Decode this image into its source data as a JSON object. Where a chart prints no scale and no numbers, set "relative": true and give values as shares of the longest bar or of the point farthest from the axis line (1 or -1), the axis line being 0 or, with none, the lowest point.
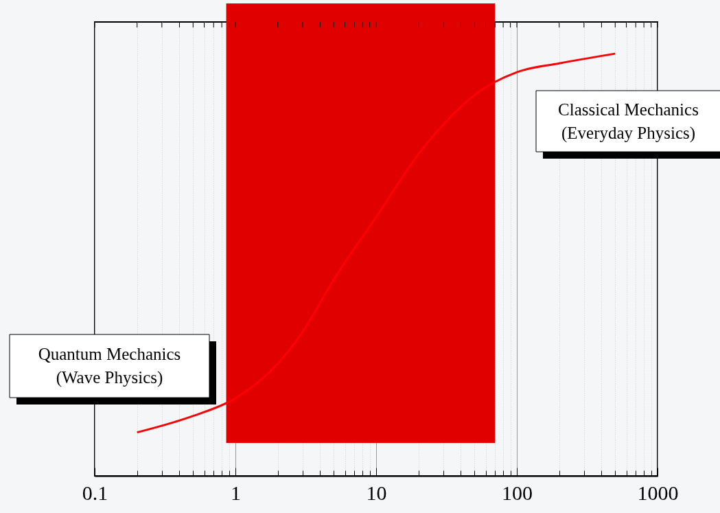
{
  "chart_data": {
    "type": "line",
    "relative": true,
    "log": "x",
    "x": [
      0.2,
      0.5,
      1,
      2,
      3,
      5,
      10,
      20,
      30,
      50,
      100,
      200,
      500
    ],
    "series": [
      {
        "color": "#ff0000",
        "values": [
          0.103,
          0.142,
          0.184,
          0.266,
          0.341,
          0.465,
          0.613,
          0.762,
          0.832,
          0.902,
          0.956,
          0.977,
          1
        ]
      }
    ],
    "xlim": [
      0.1,
      1000
    ],
    "xticks": [
      0.1,
      {
        "value": 0.2,
        "label": null
      },
      {
        "value": 0.3,
        "label": null
      },
      {
        "value": 0.4,
        "label": null
      },
      {
        "value": 0.5,
        "label": null
      },
      {
        "value": 0.6,
        "label": null
      },
      {
        "value": 0.7,
        "label": null
      },
      {
        "value": 0.8,
        "label": null
      },
      {
        "value": 0.9,
        "label": null
      },
      1,
      {
        "value": 2,
        "label": null
      },
      {
        "value": 3,
        "label": null
      },
      {
        "value": 4,
        "label": null
      },
      {
        "value": 5,
        "label": null
      },
      {
        "value": 6,
        "label": null
      },
      {
        "value": 7,
        "label": null
      },
      {
        "value": 8,
        "label": null
      },
      {
        "value": 9,
        "label": null
      },
      10,
      {
        "value": 20,
        "label": null
      },
      {
        "value": 30,
        "label": null
      },
      {
        "value": 40,
        "label": null
      },
      {
        "value": 50,
        "label": null
      },
      {
        "value": 60,
        "label": null
      },
      {
        "value": 70,
        "label": null
      },
      {
        "value": 80,
        "label": null
      },
      {
        "value": 90,
        "label": null
      },
      100,
      {
        "value": 200,
        "label": null
      },
      {
        "value": 300,
        "label": null
      },
      {
        "value": 400,
        "label": null
      },
      {
        "value": 500,
        "label": null
      },
      {
        "value": 600,
        "label": null
      },
      {
        "value": 700,
        "label": null
      },
      {
        "value": 800,
        "label": null
      },
      {
        "value": 900,
        "label": null
      },
      1000
    ],
    "bands": [
      {
        "axis": "x",
        "from": 0.86,
        "to": 70,
        "color": "#e00000"
      }
    ],
    "grid": "x",
    "line_style": "solid",
    "marker": "none",
    "annotations": [
      "Quantum Mechanics\n(Wave Physics)",
      "Classical Mechanics\n(Everyday Physics)"
    ]
  }
}
